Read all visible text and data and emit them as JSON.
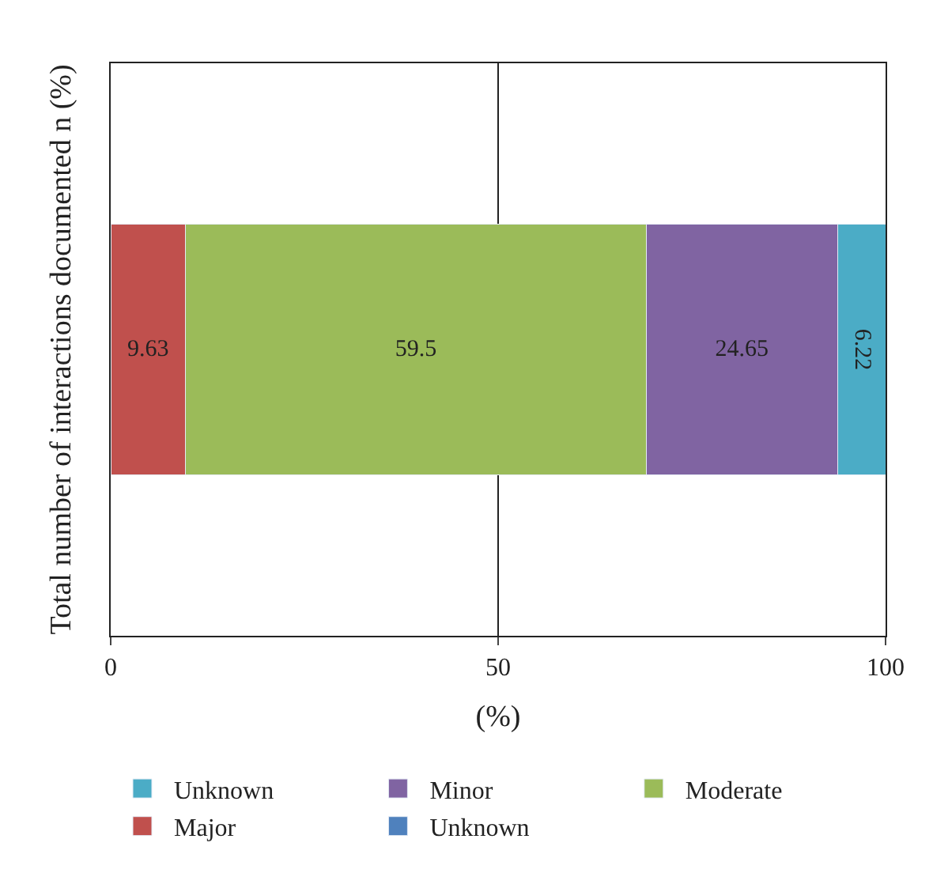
{
  "chart_data": {
    "type": "bar",
    "orientation": "horizontal",
    "stacked": true,
    "data_labels": true,
    "xlabel": "(%)",
    "ylabel": "Total number of interactions documented n (%)",
    "categories": [
      null
    ],
    "xlim": [
      0,
      100
    ],
    "xticks": [
      0,
      50,
      100
    ],
    "grid": "x",
    "legend": "bottom",
    "series": [
      {
        "name": "Unknown",
        "color": "#4f81bd",
        "values": [
          null
        ]
      },
      {
        "name": "Major",
        "color": "#c0504d",
        "values": [
          9.63
        ]
      },
      {
        "name": "Moderate",
        "color": "#9bbb59",
        "values": [
          59.5
        ]
      },
      {
        "name": "Minor",
        "color": "#8064a2",
        "values": [
          24.65
        ]
      },
      {
        "name": "Unknown",
        "color": "#4bacc6",
        "values": [
          6.22
        ]
      }
    ]
  }
}
